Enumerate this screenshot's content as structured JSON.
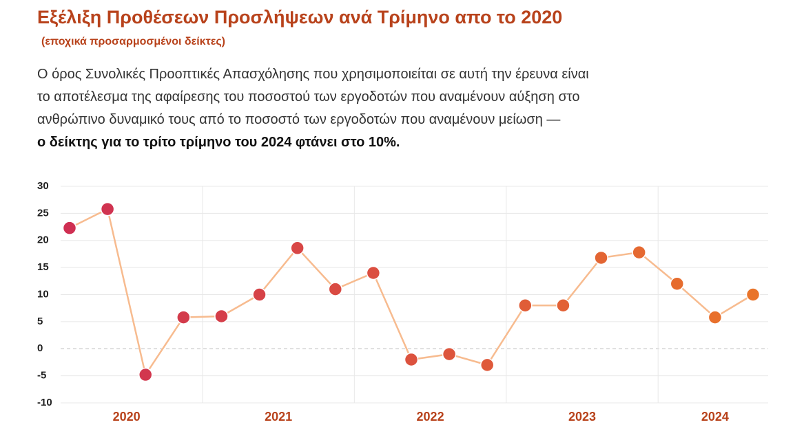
{
  "chart_data": {
    "type": "line",
    "title": "Εξέλιξη Προθέσεων Προσλήψεων ανά Τρίμηνο απο το 2020",
    "subtitle": "(εποχικά προσαρμοσμένοι δείκτες)",
    "description": [
      "Ο όρος Συνολικές Προοπτικές Απασχόλησης που χρησιμοποιείται σε αυτή την έρευνα είναι",
      "το αποτέλεσμα της αφαίρεσης του ποσοστού των εργοδοτών που αναμένουν αύξηση στο",
      "ανθρώπινο δυναμικό τους από το ποσοστό των εργοδοτών που αναμένουν μείωση —"
    ],
    "description_bold": "ο δείκτης για το τρίτο τρίμηνο του 2024 φτάνει στο 10%.",
    "groups": [
      {
        "label": "2020",
        "values": [
          22.3,
          25.8,
          -4.8,
          5.8
        ]
      },
      {
        "label": "2021",
        "values": [
          6.0,
          10.0,
          18.6,
          11.0
        ]
      },
      {
        "label": "2022",
        "values": [
          14.0,
          -2.0,
          -1.0,
          -3.0
        ]
      },
      {
        "label": "2023",
        "values": [
          8.0,
          8.0,
          16.8,
          17.8
        ]
      },
      {
        "label": "2024",
        "values": [
          12.0,
          5.8,
          10.0
        ]
      }
    ],
    "line_color": "#f7bb8f",
    "color_start": "#cf2f52",
    "color_end": "#e9742a",
    "ylim": [
      -10,
      30
    ],
    "yticks": [
      -10,
      -5,
      0,
      5,
      10,
      15,
      20,
      25,
      30
    ],
    "grid": true
  }
}
